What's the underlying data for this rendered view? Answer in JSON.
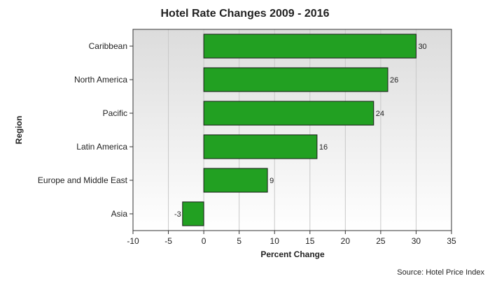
{
  "chart_data": {
    "type": "bar",
    "orientation": "horizontal",
    "title": "Hotel Rate Changes 2009 - 2016",
    "xlabel": "Percent Change",
    "ylabel": "Region",
    "categories": [
      "Caribbean",
      "North America",
      "Pacific",
      "Latin America",
      "Europe and Middle East",
      "Asia"
    ],
    "values": [
      30,
      26,
      24,
      16,
      9,
      -3
    ],
    "data_labels": [
      "30",
      "26",
      "24",
      "16",
      "9",
      "-3"
    ],
    "xlim": [
      -10,
      35
    ],
    "xticks": [
      -10,
      -5,
      0,
      5,
      10,
      15,
      20,
      25,
      30,
      35
    ],
    "xtick_labels": [
      "-10",
      "-5",
      "0",
      "5",
      "10",
      "15",
      "20",
      "25",
      "30",
      "35"
    ],
    "grid": "vertical",
    "source": "Source: Hotel Price Index",
    "bar_color": "#22a022",
    "bar_edge_color": "#1a1a1a"
  }
}
